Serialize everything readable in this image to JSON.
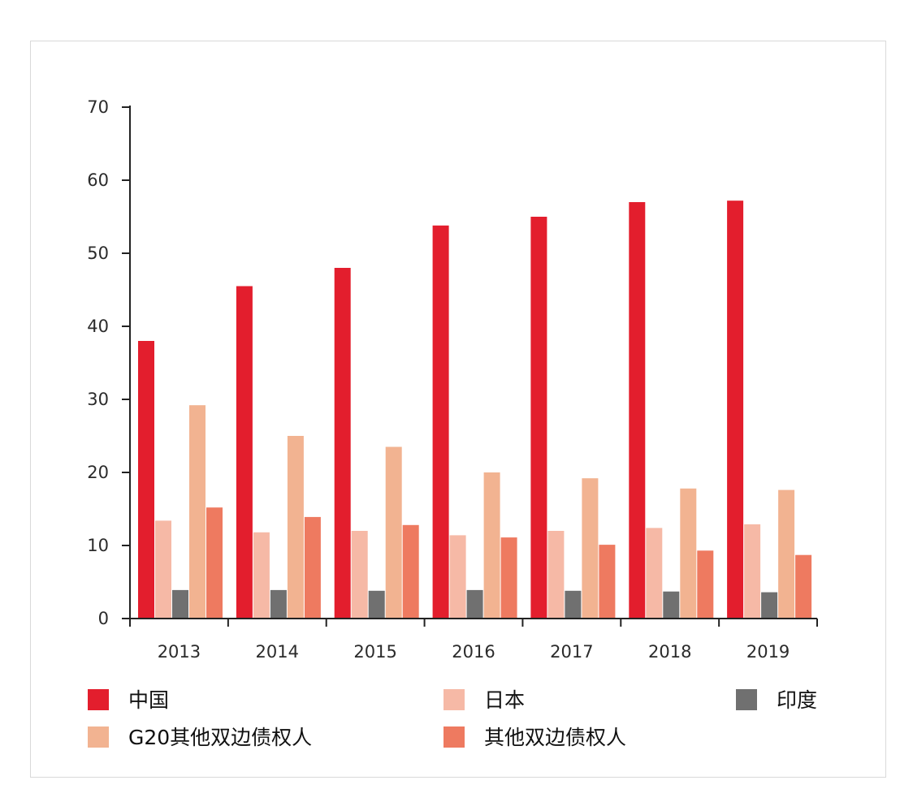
{
  "chart_data": {
    "type": "bar",
    "title": "",
    "xlabel": "",
    "ylabel": "",
    "ylim": [
      0,
      70
    ],
    "yticks": [
      0,
      10,
      20,
      30,
      40,
      50,
      60,
      70
    ],
    "categories": [
      "2013",
      "2014",
      "2015",
      "2016",
      "2017",
      "2018",
      "2019"
    ],
    "grid": false,
    "legend_position": "bottom",
    "series": [
      {
        "name": "中国",
        "color": "#e31e2d",
        "values": [
          38.0,
          45.5,
          48.0,
          53.8,
          55.0,
          57.0,
          57.2
        ]
      },
      {
        "name": "日本",
        "color": "#f6b9a6",
        "values": [
          13.4,
          11.8,
          12.0,
          11.4,
          12.0,
          12.4,
          12.9
        ]
      },
      {
        "name": "印度",
        "color": "#707070",
        "values": [
          3.9,
          3.9,
          3.8,
          3.9,
          3.8,
          3.7,
          3.6
        ]
      },
      {
        "name": "G20其他双边债权人",
        "color": "#f2b391",
        "values": [
          29.2,
          25.0,
          23.5,
          20.0,
          19.2,
          17.8,
          17.6
        ]
      },
      {
        "name": "其他双边债权人",
        "color": "#ee7a60",
        "values": [
          15.2,
          13.9,
          12.8,
          11.1,
          10.1,
          9.3,
          8.7
        ]
      }
    ]
  }
}
